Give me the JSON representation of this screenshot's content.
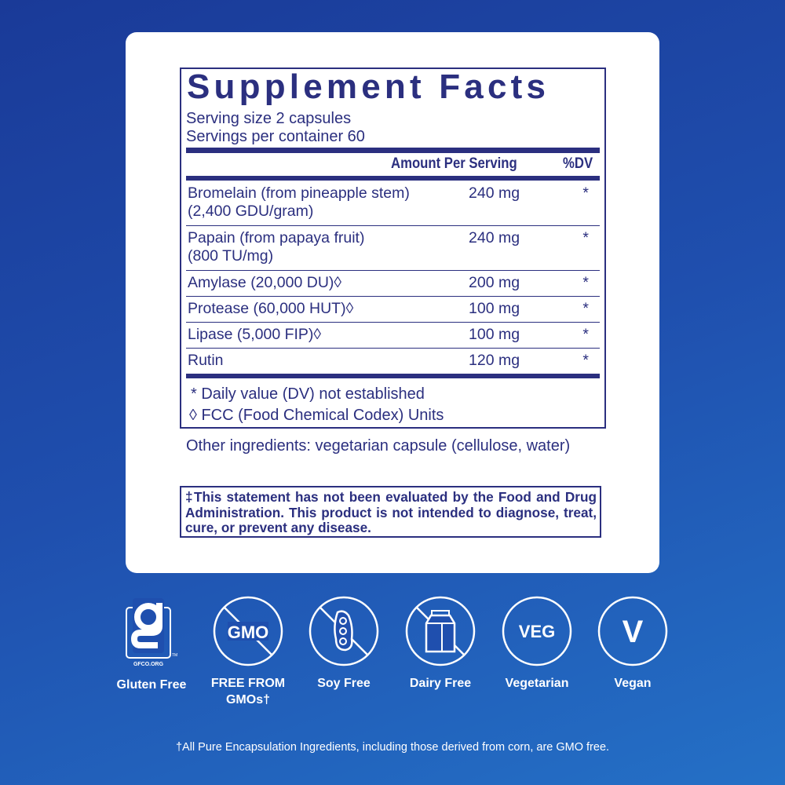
{
  "colors": {
    "label_navy": "#2b2f7f",
    "background": "#1f4fae",
    "card": "#ffffff"
  },
  "facts": {
    "title": "Supplement Facts",
    "serving_size": "Serving size  2 capsules",
    "servings_per_container": "Servings per container  60",
    "col_amount": "Amount Per Serving",
    "col_dv": "%DV",
    "rows": [
      {
        "name": "Bromelain (from pineapple stem)",
        "sub": " (2,400 GDU/gram)",
        "amount": "240 mg",
        "dv": "*"
      },
      {
        "name": "Papain (from papaya fruit)",
        "sub": " (800 TU/mg)",
        "amount": "240 mg",
        "dv": "*"
      },
      {
        "name": "Amylase (20,000 DU)◊",
        "amount": "200 mg",
        "dv": "*"
      },
      {
        "name": "Protease (60,000 HUT)◊",
        "amount": "100 mg",
        "dv": "*"
      },
      {
        "name": "Lipase (5,000 FIP)◊",
        "amount": "100 mg",
        "dv": "*"
      },
      {
        "name": "Rutin",
        "amount": "120 mg",
        "dv": "*"
      }
    ],
    "footnote1": "* Daily value (DV) not established",
    "footnote2": "◊ FCC (Food Chemical Codex) Units"
  },
  "other_ingredients": "Other ingredients: vegetarian capsule (cellulose, water)",
  "disclaimer": "‡This statement has not been evaluated by the Food and Drug Administration. This product is not intended to diagnose, treat, cure, or prevent any disease.",
  "badges": [
    {
      "icon": "gluten-free-gfco-icon",
      "label": "Gluten Free",
      "logo_text": "GFCO.ORG",
      "tm": "TM"
    },
    {
      "icon": "no-gmo-icon",
      "label": "FREE FROM GMOs†",
      "icon_text": "GMO"
    },
    {
      "icon": "no-soy-icon",
      "label": "Soy Free"
    },
    {
      "icon": "no-dairy-icon",
      "label": "Dairy Free"
    },
    {
      "icon": "veg-icon",
      "label": "Vegetarian",
      "icon_text": "VEG"
    },
    {
      "icon": "vegan-icon",
      "label": "Vegan",
      "icon_text": "V"
    }
  ],
  "gmo_note": "†All Pure Encapsulation Ingredients, including those derived from corn, are GMO free."
}
